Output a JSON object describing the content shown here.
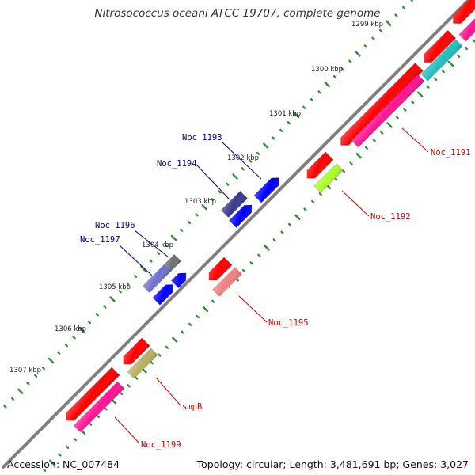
{
  "title": "Nitrosococcus oceani ATCC 19707, complete genome",
  "accession": "Accession: NC_007484",
  "summary": "Topology: circular; Length: 3,481,691 bp; Genes: 3,027",
  "ruler_labels": [
    {
      "label": "1299 kbp"
    },
    {
      "label": "1300 kbp"
    },
    {
      "label": "1301 kbp"
    },
    {
      "label": "1302 kbp"
    },
    {
      "label": "1303 kbp"
    },
    {
      "label": "1304 kbp"
    },
    {
      "label": "1305 kbp"
    },
    {
      "label": "1306 kbp"
    },
    {
      "label": "1307 kbp"
    }
  ],
  "gene_labels": [
    {
      "name": "Noc_1193",
      "color": "#00008b"
    },
    {
      "name": "Noc_1194",
      "color": "#00008b"
    },
    {
      "name": "Noc_1196",
      "color": "#00008b"
    },
    {
      "name": "Noc_1197",
      "color": "#00008b"
    },
    {
      "name": "Noc_1191",
      "color": "#cc0000"
    },
    {
      "name": "Noc_1192",
      "color": "#cc0000"
    },
    {
      "name": "Noc_1195",
      "color": "#cc0000"
    },
    {
      "name": "smpB",
      "color": "#cc0000"
    },
    {
      "name": "Noc_1199",
      "color": "#cc0000"
    }
  ],
  "colors": {
    "backbone": "#7f7f7f",
    "tick_minor": "#2e8b2e",
    "tick_major": "#2e8b2e",
    "gene_red": "#ff0000",
    "gene_blue": "#0000ff",
    "gene_navy": "#3a3a8c",
    "gene_pink": "#ff1493",
    "gene_cyan": "#20c0c0",
    "gene_lime": "#aaff22",
    "gene_salmon": "#f08080",
    "gene_khaki": "#b8b060",
    "gene_slate": "#7070d0",
    "gene_gray": "#707070"
  }
}
